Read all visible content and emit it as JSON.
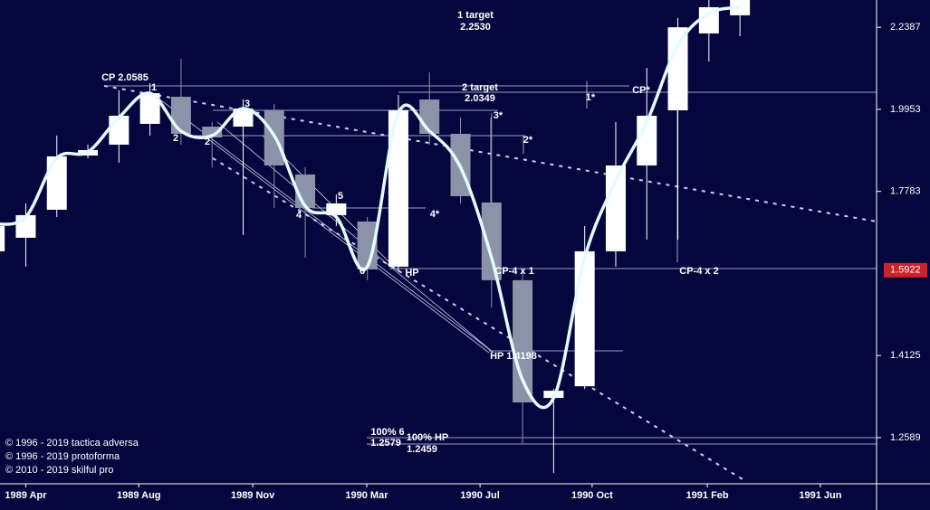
{
  "chart_data": {
    "type": "candlestick",
    "log_scale": true,
    "categories": [
      null,
      null,
      null,
      null,
      null,
      null,
      null,
      null,
      null,
      null,
      null,
      null,
      null,
      null,
      null,
      null,
      null,
      null,
      null,
      null,
      null,
      null,
      null,
      null,
      null
    ],
    "open": [
      1.635,
      1.6663,
      1.7331,
      1.8701,
      1.8988,
      1.955,
      2.0307,
      1.9475,
      1.9475,
      1.9925,
      1.821,
      1.72,
      1.7048,
      1.6001,
      2.023,
      1.9279,
      1.7508,
      1.57,
      1.331,
      1.353,
      1.635,
      1.8442,
      1.9925,
      2.2193,
      2.2766
    ],
    "high": [
      1.7048,
      1.7486,
      1.9231,
      1.8988,
      2.0488,
      2.0697,
      2.1417,
      1.9599,
      2.023,
      2.0102,
      1.8395,
      1.7709,
      1.7156,
      2.0359,
      2.1014,
      1.9724,
      1.9849,
      1.59,
      1.3479,
      1.694,
      1.9599,
      2.1147,
      2.268,
      2.326,
      2.35
    ],
    "low": [
      1.6205,
      1.6001,
      1.7156,
      1.863,
      1.8513,
      1.9231,
      1.8988,
      1.8395,
      1.6727,
      1.7375,
      1.6205,
      1.694,
      1.57,
      1.59,
      1.8988,
      1.7486,
      1.511,
      1.2494,
      1.1982,
      1.3479,
      1.6001,
      1.6621,
      1.6621,
      2.1336,
      2.2108
    ],
    "close": [
      1.694,
      1.72,
      1.8678,
      1.8844,
      1.9774,
      2.041,
      1.9279,
      1.9182,
      1.9975,
      1.8442,
      1.7375,
      1.7486,
      1.594,
      1.9925,
      1.9279,
      1.7664,
      1.57,
      1.3226,
      1.3445,
      1.635,
      1.8442,
      1.9774,
      2.2387,
      2.3025,
      2.3408
    ],
    "up_color": "#ffffff",
    "down_color": "#8a93a8",
    "series": [
      {
        "color": "#e4fbff",
        "values": [
          1.6983,
          1.7156,
          1.863,
          1.8793,
          1.9724,
          2.041,
          1.9352,
          1.9231,
          1.9975,
          1.9231,
          1.7419,
          1.7156,
          1.6001,
          1.9849,
          1.9352,
          1.8395,
          1.6205,
          1.3651,
          1.331,
          1.6205,
          1.805,
          1.9599,
          2.1829,
          2.2824,
          2.3025
        ]
      }
    ],
    "ylim": [
      1.18,
      2.326
    ],
    "yticks": [
      2.2387,
      1.9953,
      1.7783,
      1.4125,
      1.2589
    ],
    "xlim": [
      0.17,
      28.4
    ],
    "xticks": [
      {
        "value": 1,
        "label": "1989 Apr"
      },
      {
        "value": 4.64,
        "label": "1989 Aug"
      },
      {
        "value": 8.31,
        "label": "1989 Nov"
      },
      {
        "value": 11.98,
        "label": "1990 Mar"
      },
      {
        "value": 15.63,
        "label": "1990 Jul"
      },
      {
        "value": 19.24,
        "label": "1990 Oct"
      },
      {
        "value": 22.95,
        "label": "1991 Feb"
      },
      {
        "value": 26.59,
        "label": "1991 Jun"
      }
    ],
    "last_price": 1.5922,
    "last_price_color": "#d0202a",
    "annotations": [
      "1 target",
      "2.2530",
      "2 target",
      "2.0349",
      "CP 2.0585",
      "1",
      "2",
      "2",
      "3",
      "3*",
      "2*",
      "4",
      "5",
      "4*",
      "6",
      "HP",
      "CP-4 x 1",
      "1*",
      "CP*",
      "CP-4 x 2",
      "HP 1.4198",
      "100% 6",
      "1.2579",
      "100% HP",
      "1.2459"
    ],
    "copyright": [
      "© 1996 - 2019 tactica adversa",
      "© 1996 - 2019 protoforma",
      "© 2010 - 2019 skilful pro"
    ]
  }
}
